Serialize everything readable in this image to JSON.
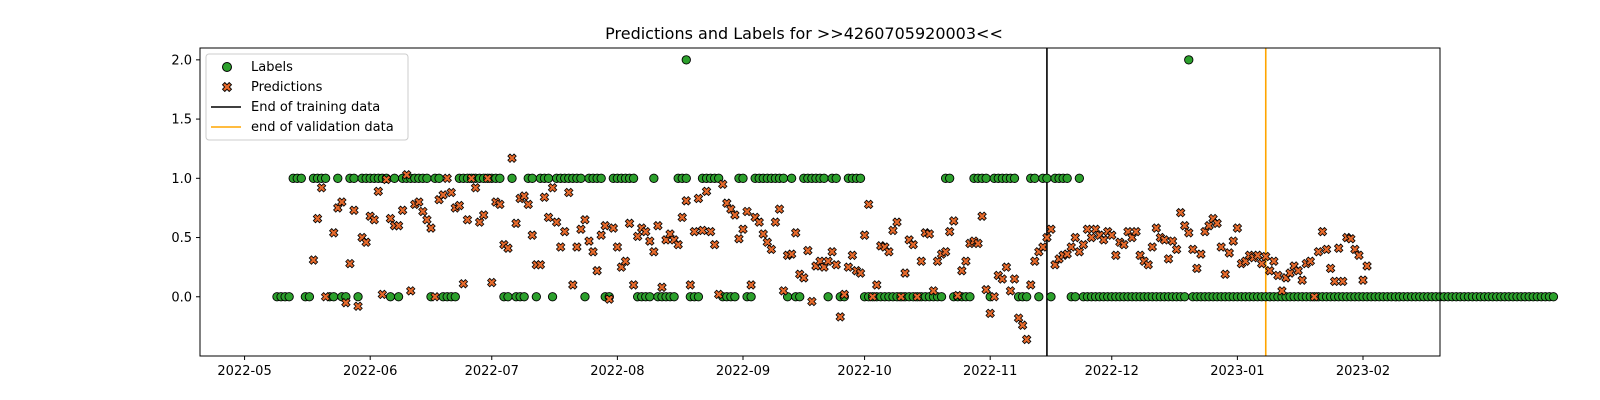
{
  "chart_data": {
    "type": "scatter",
    "title": "Predictions and Labels for >>4260705920003<<",
    "xlabel": "",
    "ylabel": "",
    "xlim": [
      "2022-04-20",
      "2023-02-20"
    ],
    "ylim": [
      -0.5,
      2.1
    ],
    "x_ticks": [
      "2022-05",
      "2022-06",
      "2022-07",
      "2022-08",
      "2022-09",
      "2022-10",
      "2022-11",
      "2022-12",
      "2023-01",
      "2023-02"
    ],
    "x_tick_dates": [
      "2022-05-01",
      "2022-06-01",
      "2022-07-01",
      "2022-08-01",
      "2022-09-01",
      "2022-10-01",
      "2022-11-01",
      "2022-12-01",
      "2023-01-01",
      "2023-02-01"
    ],
    "y_ticks": [
      "0.0",
      "0.5",
      "1.0",
      "1.5",
      "2.0"
    ],
    "y_tick_values": [
      0.0,
      0.5,
      1.0,
      1.5,
      2.0
    ],
    "grid": false,
    "legend_position": "top-left",
    "vlines": [
      {
        "name": "End of training data",
        "date": "2022-11-15",
        "color": "#000000"
      },
      {
        "name": "end of validation data",
        "date": "2023-01-08",
        "color": "#ffa500"
      }
    ],
    "series": [
      {
        "name": "Labels",
        "marker": "circle",
        "color": "#2ca02c",
        "start_date": "2022-05-09",
        "daily_values": "0000111001111001001101111111010111111101100001111111111100100011011101111111011110011111100001000001110001111100001100111111110100111111011001111000000000000000000001100000111101111110001101101111001000000000000000000000000002000000000000000000000000000000000000000000000000000000000000000000000000000000000000000000",
        "extra_points": [
          [
            "2022-08-18",
            2.0
          ]
        ]
      },
      {
        "name": "Predictions",
        "marker": "x",
        "color": "#e66a2c",
        "points": [
          [
            "2022-05-18",
            0.31
          ],
          [
            "2022-05-19",
            0.66
          ],
          [
            "2022-05-20",
            0.92
          ],
          [
            "2022-05-21",
            0.0
          ],
          [
            "2022-05-23",
            0.54
          ],
          [
            "2022-05-24",
            0.75
          ],
          [
            "2022-05-25",
            0.8
          ],
          [
            "2022-05-26",
            -0.05
          ],
          [
            "2022-05-27",
            0.28
          ],
          [
            "2022-05-28",
            0.73
          ],
          [
            "2022-05-29",
            -0.08
          ],
          [
            "2022-05-30",
            0.5
          ],
          [
            "2022-05-31",
            0.46
          ],
          [
            "2022-06-01",
            0.68
          ],
          [
            "2022-06-02",
            0.65
          ],
          [
            "2022-06-03",
            0.89
          ],
          [
            "2022-06-04",
            0.02
          ],
          [
            "2022-06-05",
            0.99
          ],
          [
            "2022-06-06",
            0.66
          ],
          [
            "2022-06-07",
            0.6
          ],
          [
            "2022-06-08",
            0.6
          ],
          [
            "2022-06-09",
            0.73
          ],
          [
            "2022-06-10",
            1.03
          ],
          [
            "2022-06-11",
            0.05
          ],
          [
            "2022-06-12",
            0.78
          ],
          [
            "2022-06-13",
            0.8
          ],
          [
            "2022-06-14",
            0.72
          ],
          [
            "2022-06-15",
            0.65
          ],
          [
            "2022-06-16",
            0.58
          ],
          [
            "2022-06-17",
            0.0
          ],
          [
            "2022-06-18",
            0.82
          ],
          [
            "2022-06-19",
            0.86
          ],
          [
            "2022-06-20",
            1.0
          ],
          [
            "2022-06-21",
            0.88
          ],
          [
            "2022-06-22",
            0.75
          ],
          [
            "2022-06-23",
            0.77
          ],
          [
            "2022-06-24",
            0.11
          ],
          [
            "2022-06-25",
            0.65
          ],
          [
            "2022-06-26",
            1.0
          ],
          [
            "2022-06-27",
            0.92
          ],
          [
            "2022-06-28",
            0.63
          ],
          [
            "2022-06-29",
            0.69
          ],
          [
            "2022-06-30",
            1.0
          ],
          [
            "2022-07-01",
            0.12
          ],
          [
            "2022-07-02",
            0.8
          ],
          [
            "2022-07-03",
            0.78
          ],
          [
            "2022-07-04",
            0.44
          ],
          [
            "2022-07-05",
            0.41
          ],
          [
            "2022-07-06",
            1.17
          ],
          [
            "2022-07-07",
            0.62
          ],
          [
            "2022-07-08",
            0.83
          ],
          [
            "2022-07-09",
            0.85
          ],
          [
            "2022-07-10",
            0.78
          ],
          [
            "2022-07-11",
            0.52
          ],
          [
            "2022-07-12",
            0.27
          ],
          [
            "2022-07-13",
            0.27
          ],
          [
            "2022-07-14",
            0.84
          ],
          [
            "2022-07-15",
            0.67
          ],
          [
            "2022-07-16",
            0.92
          ],
          [
            "2022-07-17",
            0.63
          ],
          [
            "2022-07-18",
            0.42
          ],
          [
            "2022-07-19",
            0.55
          ],
          [
            "2022-07-20",
            0.88
          ],
          [
            "2022-07-21",
            0.1
          ],
          [
            "2022-07-22",
            0.42
          ],
          [
            "2022-07-23",
            0.57
          ],
          [
            "2022-07-24",
            0.65
          ],
          [
            "2022-07-25",
            0.47
          ],
          [
            "2022-07-26",
            0.38
          ],
          [
            "2022-07-27",
            0.22
          ],
          [
            "2022-07-28",
            0.52
          ],
          [
            "2022-07-29",
            0.6
          ],
          [
            "2022-07-30",
            -0.02
          ],
          [
            "2022-07-31",
            0.58
          ],
          [
            "2022-08-01",
            0.42
          ],
          [
            "2022-08-02",
            0.25
          ],
          [
            "2022-08-03",
            0.3
          ],
          [
            "2022-08-04",
            0.62
          ],
          [
            "2022-08-05",
            0.1
          ],
          [
            "2022-08-06",
            0.51
          ],
          [
            "2022-08-07",
            0.58
          ],
          [
            "2022-08-08",
            0.55
          ],
          [
            "2022-08-09",
            0.47
          ],
          [
            "2022-08-10",
            0.38
          ],
          [
            "2022-08-11",
            0.6
          ],
          [
            "2022-08-12",
            0.08
          ],
          [
            "2022-08-13",
            0.48
          ],
          [
            "2022-08-14",
            0.53
          ],
          [
            "2022-08-15",
            0.48
          ],
          [
            "2022-08-16",
            0.44
          ],
          [
            "2022-08-17",
            0.67
          ],
          [
            "2022-08-18",
            0.81
          ],
          [
            "2022-08-19",
            0.1
          ],
          [
            "2022-08-20",
            0.55
          ],
          [
            "2022-08-21",
            0.83
          ],
          [
            "2022-08-22",
            0.56
          ],
          [
            "2022-08-23",
            0.89
          ],
          [
            "2022-08-24",
            0.55
          ],
          [
            "2022-08-25",
            0.44
          ],
          [
            "2022-08-26",
            0.02
          ],
          [
            "2022-08-27",
            0.95
          ],
          [
            "2022-08-28",
            0.79
          ],
          [
            "2022-08-29",
            0.74
          ],
          [
            "2022-08-30",
            0.69
          ],
          [
            "2022-08-31",
            0.49
          ],
          [
            "2022-09-01",
            0.57
          ],
          [
            "2022-09-02",
            0.72
          ],
          [
            "2022-09-03",
            0.1
          ],
          [
            "2022-09-04",
            0.67
          ],
          [
            "2022-09-05",
            0.63
          ],
          [
            "2022-09-06",
            0.53
          ],
          [
            "2022-09-07",
            0.46
          ],
          [
            "2022-09-08",
            0.4
          ],
          [
            "2022-09-09",
            0.63
          ],
          [
            "2022-09-10",
            0.74
          ],
          [
            "2022-09-11",
            0.05
          ],
          [
            "2022-09-12",
            0.35
          ],
          [
            "2022-09-13",
            0.36
          ],
          [
            "2022-09-14",
            0.54
          ],
          [
            "2022-09-15",
            0.19
          ],
          [
            "2022-09-16",
            0.16
          ],
          [
            "2022-09-17",
            0.39
          ],
          [
            "2022-09-18",
            -0.04
          ],
          [
            "2022-09-19",
            0.26
          ],
          [
            "2022-09-20",
            0.3
          ],
          [
            "2022-09-21",
            0.25
          ],
          [
            "2022-09-22",
            0.3
          ],
          [
            "2022-09-23",
            0.38
          ],
          [
            "2022-09-24",
            0.27
          ],
          [
            "2022-09-25",
            -0.17
          ],
          [
            "2022-09-26",
            0.02
          ],
          [
            "2022-09-27",
            0.25
          ],
          [
            "2022-09-28",
            0.35
          ],
          [
            "2022-09-29",
            0.22
          ],
          [
            "2022-09-30",
            0.2
          ],
          [
            "2022-10-01",
            0.52
          ],
          [
            "2022-10-02",
            0.78
          ],
          [
            "2022-10-03",
            0.0
          ],
          [
            "2022-10-04",
            0.1
          ],
          [
            "2022-10-05",
            0.43
          ],
          [
            "2022-10-06",
            0.42
          ],
          [
            "2022-10-07",
            0.38
          ],
          [
            "2022-10-08",
            0.56
          ],
          [
            "2022-10-09",
            0.63
          ],
          [
            "2022-10-10",
            0.0
          ],
          [
            "2022-10-11",
            0.2
          ],
          [
            "2022-10-12",
            0.48
          ],
          [
            "2022-10-13",
            0.44
          ],
          [
            "2022-10-14",
            0.0
          ],
          [
            "2022-10-15",
            0.3
          ],
          [
            "2022-10-16",
            0.54
          ],
          [
            "2022-10-17",
            0.53
          ],
          [
            "2022-10-18",
            0.05
          ],
          [
            "2022-10-19",
            0.3
          ],
          [
            "2022-10-20",
            0.36
          ],
          [
            "2022-10-21",
            0.38
          ],
          [
            "2022-10-22",
            0.55
          ],
          [
            "2022-10-23",
            0.64
          ],
          [
            "2022-10-24",
            0.01
          ],
          [
            "2022-10-25",
            0.22
          ],
          [
            "2022-10-26",
            0.3
          ],
          [
            "2022-10-27",
            0.45
          ],
          [
            "2022-10-28",
            0.47
          ],
          [
            "2022-10-29",
            0.45
          ],
          [
            "2022-10-30",
            0.68
          ],
          [
            "2022-10-31",
            0.06
          ],
          [
            "2022-11-01",
            -0.14
          ],
          [
            "2022-11-02",
            0.0
          ],
          [
            "2022-11-03",
            0.18
          ],
          [
            "2022-11-04",
            0.15
          ],
          [
            "2022-11-05",
            0.25
          ],
          [
            "2022-11-06",
            0.05
          ],
          [
            "2022-11-07",
            0.15
          ],
          [
            "2022-11-08",
            -0.18
          ],
          [
            "2022-11-09",
            -0.24
          ],
          [
            "2022-11-10",
            -0.36
          ],
          [
            "2022-11-11",
            0.1
          ],
          [
            "2022-11-12",
            0.3
          ],
          [
            "2022-11-13",
            0.38
          ],
          [
            "2022-11-14",
            0.42
          ],
          [
            "2022-11-15",
            0.5
          ],
          [
            "2022-11-16",
            0.57
          ],
          [
            "2022-11-17",
            0.27
          ],
          [
            "2022-11-18",
            0.32
          ],
          [
            "2022-11-19",
            0.35
          ],
          [
            "2022-11-20",
            0.36
          ],
          [
            "2022-11-21",
            0.42
          ],
          [
            "2022-11-22",
            0.5
          ],
          [
            "2022-11-23",
            0.38
          ],
          [
            "2022-11-24",
            0.44
          ],
          [
            "2022-11-25",
            0.57
          ],
          [
            "2022-11-26",
            0.5
          ],
          [
            "2022-11-27",
            0.57
          ],
          [
            "2022-11-28",
            0.52
          ],
          [
            "2022-11-29",
            0.48
          ],
          [
            "2022-11-30",
            0.55
          ],
          [
            "2022-12-01",
            0.52
          ],
          [
            "2022-12-02",
            0.35
          ],
          [
            "2022-12-03",
            0.46
          ],
          [
            "2022-12-04",
            0.44
          ],
          [
            "2022-12-05",
            0.55
          ],
          [
            "2022-12-06",
            0.5
          ],
          [
            "2022-12-07",
            0.55
          ],
          [
            "2022-12-08",
            0.35
          ],
          [
            "2022-12-09",
            0.3
          ],
          [
            "2022-12-10",
            0.27
          ],
          [
            "2022-12-11",
            0.42
          ],
          [
            "2022-12-12",
            0.58
          ],
          [
            "2022-12-13",
            0.5
          ],
          [
            "2022-12-14",
            0.48
          ],
          [
            "2022-12-15",
            0.32
          ],
          [
            "2022-12-16",
            0.47
          ],
          [
            "2022-12-17",
            0.4
          ],
          [
            "2022-12-18",
            0.71
          ],
          [
            "2022-12-19",
            0.6
          ],
          [
            "2022-12-20",
            0.54
          ],
          [
            "2022-12-21",
            0.4
          ],
          [
            "2022-12-22",
            0.24
          ],
          [
            "2022-12-23",
            0.36
          ],
          [
            "2022-12-24",
            0.55
          ],
          [
            "2022-12-25",
            0.6
          ],
          [
            "2022-12-26",
            0.66
          ],
          [
            "2022-12-27",
            0.62
          ],
          [
            "2022-12-28",
            0.42
          ],
          [
            "2022-12-29",
            0.19
          ],
          [
            "2022-12-30",
            0.37
          ],
          [
            "2022-12-31",
            0.47
          ],
          [
            "2023-01-01",
            0.58
          ],
          [
            "2023-01-02",
            0.28
          ],
          [
            "2023-01-03",
            0.3
          ],
          [
            "2023-01-04",
            0.35
          ],
          [
            "2023-01-05",
            0.33
          ],
          [
            "2023-01-06",
            0.35
          ],
          [
            "2023-01-07",
            0.28
          ],
          [
            "2023-01-08",
            0.34
          ],
          [
            "2023-01-09",
            0.22
          ],
          [
            "2023-01-10",
            0.3
          ],
          [
            "2023-01-11",
            0.18
          ],
          [
            "2023-01-12",
            0.05
          ],
          [
            "2023-01-13",
            0.16
          ],
          [
            "2023-01-14",
            0.2
          ],
          [
            "2023-01-15",
            0.26
          ],
          [
            "2023-01-16",
            0.22
          ],
          [
            "2023-01-17",
            0.14
          ],
          [
            "2023-01-18",
            0.28
          ],
          [
            "2023-01-19",
            0.3
          ],
          [
            "2023-01-20",
            0.0
          ],
          [
            "2023-01-21",
            0.38
          ],
          [
            "2023-01-22",
            0.55
          ],
          [
            "2023-01-23",
            0.4
          ],
          [
            "2023-01-24",
            0.24
          ],
          [
            "2023-01-25",
            0.13
          ],
          [
            "2023-01-26",
            0.41
          ],
          [
            "2023-01-27",
            0.13
          ],
          [
            "2023-01-28",
            0.5
          ],
          [
            "2023-01-29",
            0.49
          ],
          [
            "2023-01-30",
            0.4
          ],
          [
            "2023-01-31",
            0.35
          ],
          [
            "2023-02-01",
            0.14
          ],
          [
            "2023-02-02",
            0.26
          ]
        ]
      }
    ]
  }
}
